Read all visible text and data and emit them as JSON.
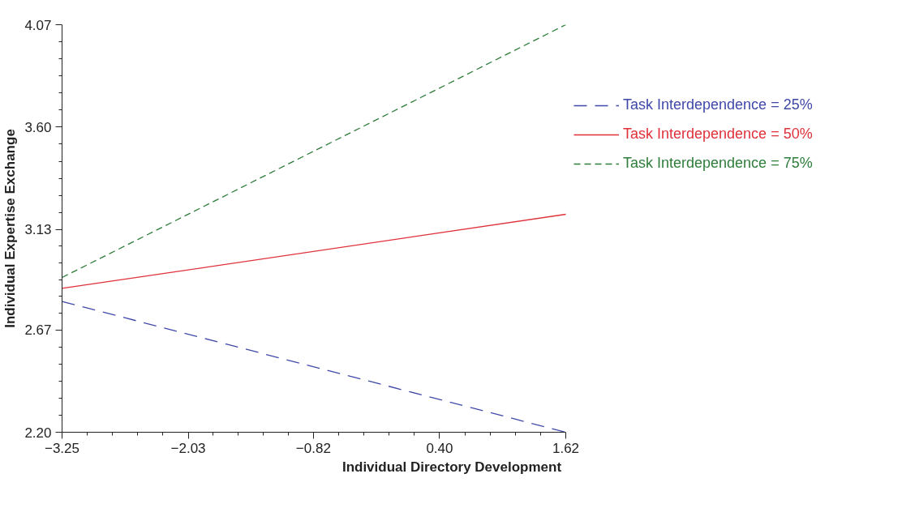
{
  "chart_data": {
    "type": "line",
    "xlabel": "Individual Directory Development",
    "ylabel": "Individual Expertise Exchange",
    "x": [
      -3.25,
      1.62
    ],
    "series": [
      {
        "name": "Task Interdependence = 25%",
        "color": "#3f48a8",
        "values": [
          2.8,
          2.2
        ],
        "line_style": "dashed"
      },
      {
        "name": "Task Interdependence = 50%",
        "color": "#e0303a",
        "values": [
          2.86,
          3.2
        ],
        "line_style": "solid"
      },
      {
        "name": "Task Interdependence = 75%",
        "color": "#2e7d3a",
        "values": [
          2.91,
          4.07
        ],
        "line_style": "dotted"
      }
    ],
    "xlim": [
      -3.25,
      1.62
    ],
    "xticks": [
      {
        "value": -3.25,
        "label": "−3.25"
      },
      {
        "value": -2.03,
        "label": "−2.03"
      },
      {
        "value": -0.82,
        "label": "−0.82"
      },
      {
        "value": 0.4,
        "label": "0.40"
      },
      1.62
    ],
    "ylim": [
      2.2,
      4.07
    ],
    "yticks": [
      {
        "value": 2.2,
        "label": "2.20"
      },
      2.67,
      3.13,
      {
        "value": 3.6,
        "label": "3.60"
      },
      4.07
    ],
    "grid": false,
    "legend": "right",
    "marker": "none"
  }
}
